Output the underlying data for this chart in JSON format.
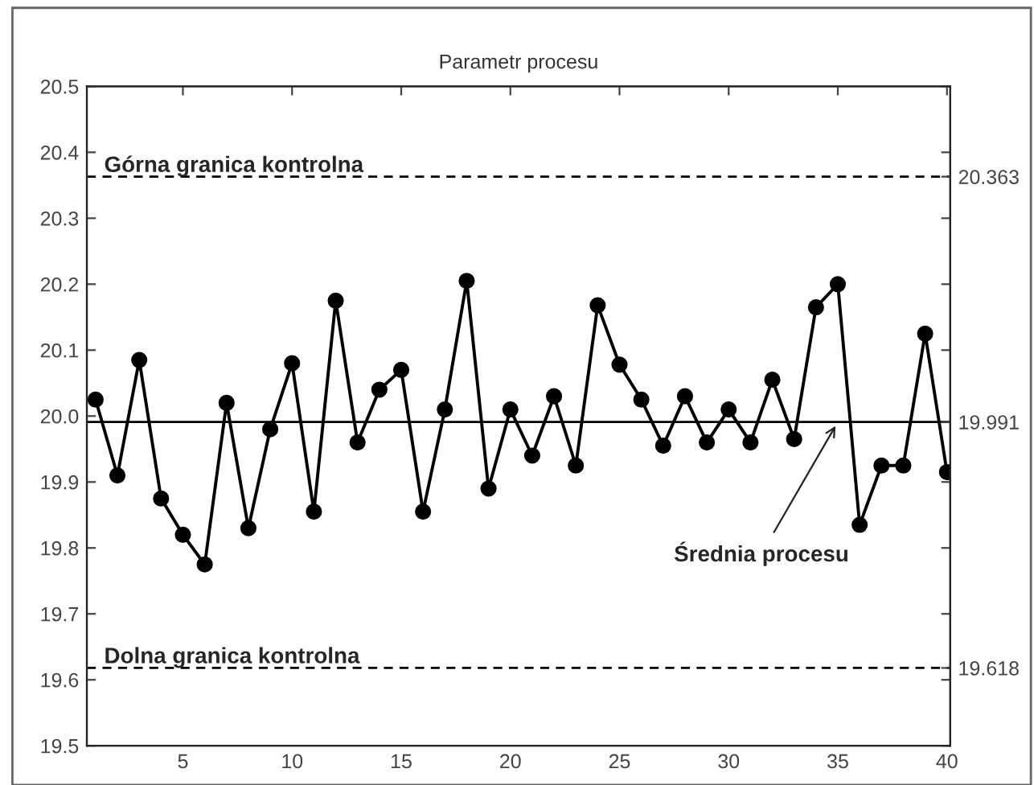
{
  "chart_data": {
    "type": "line",
    "title": "Parametr procesu",
    "x": [
      1,
      2,
      3,
      4,
      5,
      6,
      7,
      8,
      9,
      10,
      11,
      12,
      13,
      14,
      15,
      16,
      17,
      18,
      19,
      20,
      21,
      22,
      23,
      24,
      25,
      26,
      27,
      28,
      29,
      30,
      31,
      32,
      33,
      34,
      35,
      36,
      37,
      38,
      39,
      40
    ],
    "series": [
      {
        "color": "#000000",
        "values": [
          20.025,
          19.91,
          20.085,
          19.875,
          19.82,
          19.775,
          20.02,
          19.83,
          19.98,
          20.08,
          19.855,
          20.175,
          19.96,
          20.04,
          20.07,
          19.855,
          20.01,
          20.205,
          19.89,
          20.01,
          19.94,
          20.03,
          19.925,
          20.168,
          20.078,
          20.025,
          19.955,
          20.03,
          19.96,
          20.01,
          19.96,
          20.055,
          19.965,
          20.165,
          20.2,
          19.835,
          19.925,
          19.925,
          20.125,
          19.915
        ]
      }
    ],
    "xlim": [
      0.6,
      40.15
    ],
    "xticks": [
      5,
      10,
      15,
      20,
      25,
      30,
      35,
      40
    ],
    "ylim": [
      19.5,
      20.5
    ],
    "yticks": [
      19.5,
      19.6,
      19.7,
      19.8,
      19.9,
      {
        "value": 20,
        "label": "20.0"
      },
      20.1,
      20.2,
      20.3,
      20.4,
      20.5
    ],
    "y2lim": [
      19.5,
      20.5
    ],
    "y2ticks": [
      {
        "value": 19.5,
        "label": null
      },
      {
        "value": 19.6,
        "label": null
      },
      {
        "value": 19.7,
        "label": null
      },
      {
        "value": 19.8,
        "label": null
      },
      {
        "value": 19.9,
        "label": null
      },
      {
        "value": 20.1,
        "label": null
      },
      {
        "value": 20.2,
        "label": null
      },
      {
        "value": 20.3,
        "label": null
      },
      {
        "value": 20.4,
        "label": null
      },
      {
        "value": 20.5,
        "label": null
      },
      19.618,
      19.991,
      20.363
    ],
    "ref_lines": [
      {
        "axis": "y",
        "value": 20.363,
        "label": "Górna granica kontrolna",
        "line_style": "dashed",
        "color": "#000000"
      },
      {
        "axis": "y",
        "value": 19.991,
        "label": null,
        "line_style": "solid",
        "color": "#000000"
      },
      {
        "axis": "y",
        "value": 19.618,
        "label": "Dolna granica kontrolna",
        "line_style": "dashed",
        "color": "#000000"
      }
    ],
    "annotations": [
      {
        "text": "Średnia procesu",
        "x": 35,
        "y": 19.991
      }
    ],
    "marker": "circle",
    "line_style": "solid",
    "grid": false,
    "legend": false
  }
}
